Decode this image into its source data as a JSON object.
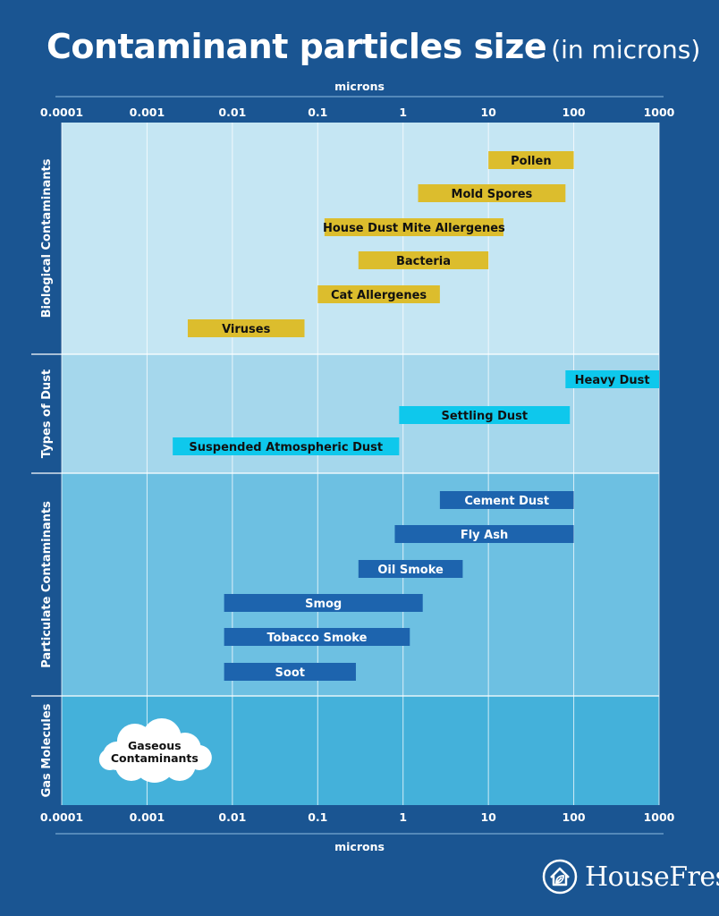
{
  "title": {
    "main": "Contaminant particles size",
    "sub": "(in microns)"
  },
  "brand": {
    "name": "HouseFresh",
    "logo_icon": "house-leaf-icon"
  },
  "chart_data": {
    "type": "bar",
    "orientation": "horizontal-range",
    "x_scale": "log",
    "xlabel": "microns",
    "xlim": [
      0.0001,
      1000
    ],
    "x_ticks": [
      "0.0001",
      "0.001",
      "0.01",
      "0.1",
      "1",
      "10",
      "100",
      "1000"
    ],
    "grid": true,
    "groups": [
      {
        "name": "Biological Contaminants",
        "color": "#dcbd2d",
        "background": "#c5e6f3",
        "label_color": "#111111",
        "items": [
          {
            "label": "Pollen",
            "min": 10,
            "max": 100
          },
          {
            "label": "Mold Spores",
            "min": 1.5,
            "max": 80
          },
          {
            "label": "House Dust Mite Allergenes",
            "min": 0.12,
            "max": 15
          },
          {
            "label": "Bacteria",
            "min": 0.3,
            "max": 10
          },
          {
            "label": "Cat Allergenes",
            "min": 0.1,
            "max": 2.7
          },
          {
            "label": "Viruses",
            "min": 0.003,
            "max": 0.07
          }
        ]
      },
      {
        "name": "Types of Dust",
        "color": "#0ec8ec",
        "background": "#a5d7ec",
        "label_color": "#111111",
        "items": [
          {
            "label": "Heavy Dust",
            "min": 80,
            "max": 1000
          },
          {
            "label": "Settling Dust",
            "min": 0.9,
            "max": 90
          },
          {
            "label": "Suspended Atmospheric Dust",
            "min": 0.002,
            "max": 0.9
          }
        ]
      },
      {
        "name": "Particulate Contaminants",
        "color": "#1d64ae",
        "background": "#6dc0e2",
        "label_color": "#ffffff",
        "items": [
          {
            "label": "Cement Dust",
            "min": 2.7,
            "max": 100
          },
          {
            "label": "Fly Ash",
            "min": 0.8,
            "max": 100
          },
          {
            "label": "Oil Smoke",
            "min": 0.3,
            "max": 5
          },
          {
            "label": "Smog",
            "min": 0.008,
            "max": 1.7
          },
          {
            "label": "Tobacco Smoke",
            "min": 0.008,
            "max": 1.2
          },
          {
            "label": "Soot",
            "min": 0.008,
            "max": 0.28
          }
        ]
      },
      {
        "name": "Gas Molecules",
        "color": "#ffffff",
        "background": "#44b1da",
        "label_color": "#111111",
        "items": [
          {
            "label_lines": [
              "Gaseous",
              "Contaminants"
            ],
            "min": 0.0003,
            "max": 0.005,
            "shape": "cloud"
          }
        ]
      }
    ]
  }
}
